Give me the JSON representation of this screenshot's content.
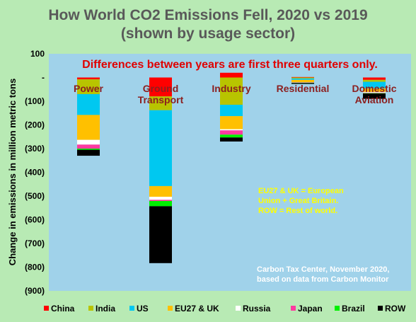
{
  "chart_data": {
    "type": "bar",
    "stacked": true,
    "title_line1": "How World CO2 Emissions Fell, 2020 vs 2019",
    "title_line2": "(shown by usage sector)",
    "note_top": "Differences between years are first three quarters only.",
    "ylabel": "Change in emissions in million metric tons",
    "ylim": [
      -900,
      100
    ],
    "yticks": [
      100,
      0,
      -100,
      -200,
      -300,
      -400,
      -500,
      -600,
      -700,
      -800,
      -900
    ],
    "ytick_labels": [
      "100",
      "-",
      "(100)",
      "(200)",
      "(300)",
      "(400)",
      "(500)",
      "(600)",
      "(700)",
      "(800)",
      "(900)"
    ],
    "categories": [
      {
        "line1": "Power",
        "line2": ""
      },
      {
        "line1": "Ground",
        "line2": "Transport"
      },
      {
        "line1": "Industry",
        "line2": ""
      },
      {
        "line1": "Residential",
        "line2": ""
      },
      {
        "line1": "Domestic",
        "line2": "Aviation"
      }
    ],
    "series": [
      {
        "name": "China",
        "color": "#ff0000",
        "values": [
          -8,
          -80,
          20,
          2,
          -10
        ]
      },
      {
        "name": "India",
        "color": "#b8c400",
        "values": [
          -62,
          -58,
          -115,
          -4,
          -8
        ]
      },
      {
        "name": "US",
        "color": "#00c8f0",
        "values": [
          -88,
          -320,
          -48,
          -6,
          -28
        ]
      },
      {
        "name": "EU27 & UK",
        "color": "#ffc000",
        "values": [
          -105,
          -45,
          -55,
          -10,
          -15
        ]
      },
      {
        "name": "Russia",
        "color": "#ffffff",
        "values": [
          -20,
          -13,
          -5,
          -1,
          -3
        ]
      },
      {
        "name": "Japan",
        "color": "#ff3aa0",
        "values": [
          -17,
          -5,
          -18,
          -1,
          -2
        ]
      },
      {
        "name": "Brazil",
        "color": "#00f000",
        "values": [
          -5,
          -22,
          -12,
          -1,
          -2
        ]
      },
      {
        "name": "ROW",
        "color": "#000000",
        "values": [
          -25,
          -240,
          -17,
          -4,
          -22
        ]
      }
    ],
    "annotations": {
      "definitions": [
        "EU27 & UK = European",
        "Union + Great Britain.",
        "ROW = Rest of world."
      ],
      "source": [
        "Carbon Tax Center, November 2020,",
        "based on data from Carbon Monitor"
      ]
    },
    "legend_position": "bottom",
    "grid": false
  }
}
